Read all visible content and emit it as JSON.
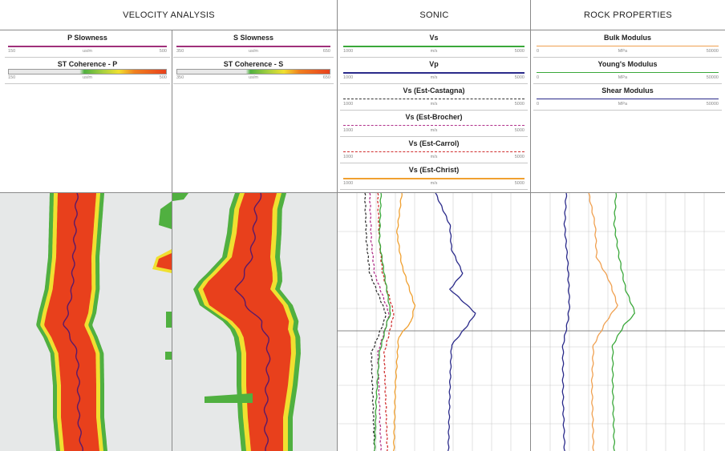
{
  "tracks": {
    "velocity": {
      "title": "VELOCITY ANALYSIS"
    },
    "sonic": {
      "title": "SONIC"
    },
    "rock": {
      "title": "ROCK PROPERTIES"
    }
  },
  "velocity_headers": {
    "p_slowness": {
      "name": "P Slowness",
      "min": "150",
      "unit": "us/m",
      "max": "500",
      "color": "#a0307a"
    },
    "s_slowness": {
      "name": "S Slowness",
      "min": "350",
      "unit": "us/m",
      "max": "650",
      "color": "#a0307a"
    },
    "st_coh_p": {
      "name": "ST Coherence - P",
      "min": "150",
      "unit": "us/m",
      "max": "500"
    },
    "st_coh_s": {
      "name": "ST Coherence - S",
      "min": "350",
      "unit": "us/m",
      "max": "650"
    }
  },
  "sonic_headers": [
    {
      "name": "Vs",
      "min": "1000",
      "unit": "m/s",
      "max": "5000",
      "color": "#3aa83a",
      "style": "solid"
    },
    {
      "name": "Vp",
      "min": "1000",
      "unit": "m/s",
      "max": "5000",
      "color": "#2a2a8a",
      "style": "solid"
    },
    {
      "name": "Vs (Est-Castagna)",
      "min": "1000",
      "unit": "m/s",
      "max": "5000",
      "color": "#333333",
      "style": "dash"
    },
    {
      "name": "Vs (Est-Brocher)",
      "min": "1000",
      "unit": "m/s",
      "max": "5000",
      "color": "#b0308a",
      "style": "dash"
    },
    {
      "name": "Vs (Est-Carrol)",
      "min": "1000",
      "unit": "m/s",
      "max": "5000",
      "color": "#d03030",
      "style": "dash"
    },
    {
      "name": "Vs (Est-Christ)",
      "min": "1000",
      "unit": "m/s",
      "max": "5000",
      "color": "#f0a030",
      "style": "solid"
    }
  ],
  "rock_headers": [
    {
      "name": "Bulk Modulus",
      "min": "0",
      "unit": "MPa",
      "max": "50000",
      "color": "#f0a050"
    },
    {
      "name": "Young's Modulus",
      "min": "0",
      "unit": "MPa",
      "max": "50000",
      "color": "#3aa83a"
    },
    {
      "name": "Shear Modulus",
      "min": "0",
      "unit": "MPa",
      "max": "50000",
      "color": "#2a2a8a"
    }
  ],
  "colors": {
    "coherence_red": "#e8401c",
    "coherence_yellow": "#f0e030",
    "coherence_green": "#50b040",
    "plot_bg": "#e6e8e8",
    "grid": "#cccccc"
  }
}
